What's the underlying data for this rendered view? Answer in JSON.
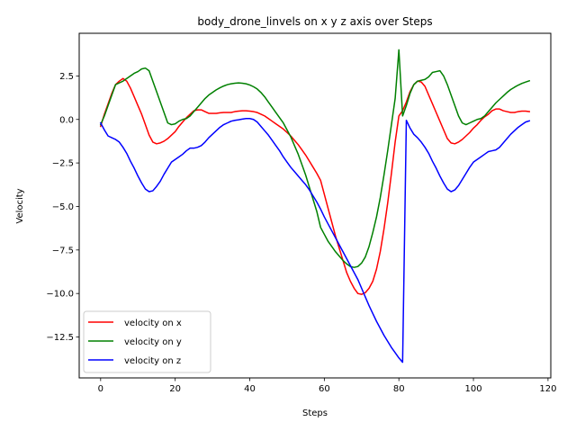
{
  "chart_data": {
    "type": "line",
    "title": "body_drone_linvels on x y z axis over Steps",
    "xlabel": "Steps",
    "ylabel": "Velocity",
    "xlim": [
      -5.75,
      120.75
    ],
    "ylim": [
      -14.85,
      4.95
    ],
    "xticks": [
      0,
      20,
      40,
      60,
      80,
      100,
      120
    ],
    "yticks": [
      -12.5,
      -10.0,
      -7.5,
      -5.0,
      -2.5,
      0.0,
      2.5
    ],
    "ytick_labels": [
      "−12.5",
      "−10.0",
      "−7.5",
      "−5.0",
      "−2.5",
      "0.0",
      "2.5"
    ],
    "grid": false,
    "legend_position": "lower-left",
    "x": [
      0,
      1,
      2,
      3,
      4,
      5,
      6,
      7,
      8,
      9,
      10,
      11,
      12,
      13,
      14,
      15,
      16,
      17,
      18,
      19,
      20,
      21,
      22,
      23,
      24,
      25,
      26,
      27,
      28,
      29,
      30,
      31,
      32,
      33,
      34,
      35,
      36,
      37,
      38,
      39,
      40,
      41,
      42,
      43,
      44,
      45,
      46,
      47,
      48,
      49,
      50,
      51,
      52,
      53,
      54,
      55,
      56,
      57,
      58,
      59,
      60,
      61,
      62,
      63,
      64,
      65,
      66,
      67,
      68,
      69,
      70,
      71,
      72,
      73,
      74,
      75,
      76,
      77,
      78,
      79,
      80,
      81,
      82,
      83,
      84,
      85,
      86,
      87,
      88,
      89,
      90,
      91,
      92,
      93,
      94,
      95,
      96,
      97,
      98,
      99,
      100,
      101,
      102,
      103,
      104,
      105,
      106,
      107,
      108,
      109,
      110,
      111,
      112,
      113,
      114,
      115
    ],
    "series": [
      {
        "name": "velocity on x",
        "color": "#ff0000",
        "values": [
          -0.4,
          0.3,
          0.9,
          1.5,
          2.0,
          2.2,
          2.35,
          2.2,
          1.8,
          1.3,
          0.8,
          0.3,
          -0.3,
          -0.9,
          -1.3,
          -1.4,
          -1.35,
          -1.25,
          -1.1,
          -0.9,
          -0.7,
          -0.4,
          -0.15,
          0.1,
          0.3,
          0.5,
          0.55,
          0.55,
          0.45,
          0.35,
          0.35,
          0.35,
          0.38,
          0.4,
          0.4,
          0.4,
          0.45,
          0.48,
          0.5,
          0.5,
          0.48,
          0.45,
          0.4,
          0.3,
          0.2,
          0.05,
          -0.1,
          -0.25,
          -0.4,
          -0.55,
          -0.75,
          -0.95,
          -1.2,
          -1.45,
          -1.75,
          -2.05,
          -2.4,
          -2.75,
          -3.1,
          -3.5,
          -4.3,
          -5.1,
          -5.9,
          -6.7,
          -7.4,
          -8.1,
          -8.8,
          -9.3,
          -9.7,
          -10.0,
          -10.05,
          -9.95,
          -9.7,
          -9.3,
          -8.6,
          -7.6,
          -6.3,
          -4.8,
          -3.1,
          -1.3,
          0.2,
          0.5,
          1.0,
          1.6,
          2.0,
          2.2,
          2.15,
          1.9,
          1.4,
          0.9,
          0.4,
          -0.1,
          -0.6,
          -1.1,
          -1.35,
          -1.4,
          -1.3,
          -1.15,
          -0.95,
          -0.75,
          -0.5,
          -0.3,
          -0.05,
          0.15,
          0.3,
          0.5,
          0.6,
          0.6,
          0.5,
          0.45,
          0.4,
          0.4,
          0.45,
          0.48,
          0.48,
          0.45
        ]
      },
      {
        "name": "velocity on y",
        "color": "#008000",
        "values": [
          -0.3,
          0.2,
          0.8,
          1.4,
          2.0,
          2.1,
          2.2,
          2.35,
          2.5,
          2.65,
          2.75,
          2.9,
          2.95,
          2.8,
          2.2,
          1.6,
          1.0,
          0.4,
          -0.2,
          -0.3,
          -0.25,
          -0.1,
          0.0,
          0.05,
          0.2,
          0.45,
          0.7,
          0.95,
          1.2,
          1.4,
          1.55,
          1.7,
          1.82,
          1.92,
          2.0,
          2.05,
          2.08,
          2.1,
          2.08,
          2.05,
          1.98,
          1.88,
          1.75,
          1.55,
          1.3,
          1.0,
          0.7,
          0.4,
          0.1,
          -0.2,
          -0.6,
          -1.0,
          -1.5,
          -2.0,
          -2.6,
          -3.2,
          -3.9,
          -4.6,
          -5.3,
          -6.2,
          -6.6,
          -7.0,
          -7.3,
          -7.6,
          -7.85,
          -8.1,
          -8.3,
          -8.45,
          -8.5,
          -8.45,
          -8.25,
          -7.9,
          -7.3,
          -6.5,
          -5.6,
          -4.5,
          -3.2,
          -1.8,
          -0.3,
          1.2,
          4.0,
          0.2,
          0.8,
          1.5,
          2.0,
          2.2,
          2.25,
          2.3,
          2.45,
          2.7,
          2.75,
          2.8,
          2.5,
          2.0,
          1.4,
          0.8,
          0.2,
          -0.2,
          -0.3,
          -0.2,
          -0.1,
          0.0,
          0.05,
          0.2,
          0.45,
          0.7,
          0.95,
          1.15,
          1.35,
          1.55,
          1.72,
          1.85,
          1.97,
          2.07,
          2.15,
          2.22
        ]
      },
      {
        "name": "velocity on z",
        "color": "#0000ff",
        "values": [
          -0.2,
          -0.6,
          -0.95,
          -1.05,
          -1.15,
          -1.3,
          -1.6,
          -1.95,
          -2.4,
          -2.8,
          -3.25,
          -3.65,
          -4.0,
          -4.15,
          -4.1,
          -3.85,
          -3.55,
          -3.15,
          -2.8,
          -2.45,
          -2.3,
          -2.15,
          -2.0,
          -1.8,
          -1.65,
          -1.65,
          -1.6,
          -1.5,
          -1.3,
          -1.05,
          -0.85,
          -0.65,
          -0.45,
          -0.3,
          -0.2,
          -0.1,
          -0.05,
          -0.02,
          0.02,
          0.05,
          0.05,
          0.0,
          -0.15,
          -0.4,
          -0.65,
          -0.9,
          -1.2,
          -1.5,
          -1.8,
          -2.15,
          -2.45,
          -2.75,
          -3.0,
          -3.25,
          -3.5,
          -3.75,
          -4.05,
          -4.4,
          -4.75,
          -5.15,
          -5.6,
          -6.0,
          -6.4,
          -6.8,
          -7.2,
          -7.6,
          -8.0,
          -8.4,
          -8.8,
          -9.2,
          -9.7,
          -10.2,
          -10.7,
          -11.15,
          -11.6,
          -12.0,
          -12.4,
          -12.75,
          -13.1,
          -13.4,
          -13.7,
          -13.95,
          -0.05,
          -0.5,
          -0.85,
          -1.05,
          -1.3,
          -1.6,
          -1.95,
          -2.4,
          -2.8,
          -3.25,
          -3.65,
          -4.0,
          -4.15,
          -4.05,
          -3.8,
          -3.45,
          -3.1,
          -2.75,
          -2.45,
          -2.3,
          -2.15,
          -2.0,
          -1.85,
          -1.8,
          -1.75,
          -1.6,
          -1.35,
          -1.1,
          -0.85,
          -0.65,
          -0.45,
          -0.3,
          -0.15,
          -0.08
        ]
      }
    ]
  }
}
